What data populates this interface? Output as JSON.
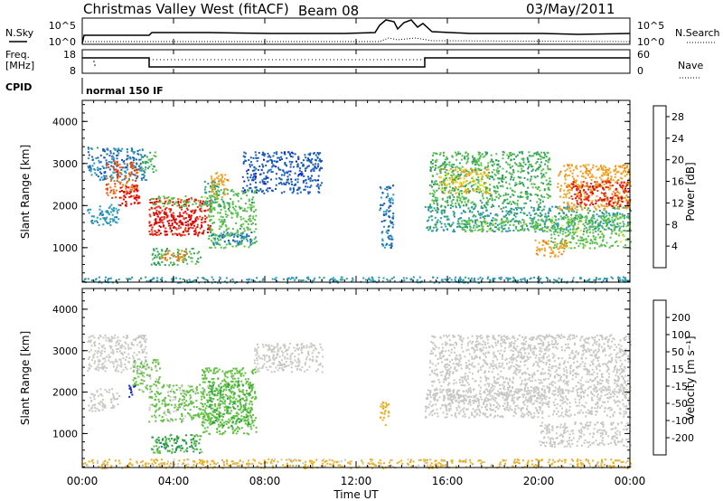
{
  "header": {
    "station": "Christmas Valley West (fitACF)",
    "beam": "Beam 08",
    "date": "03/May/2011"
  },
  "top_panels": {
    "nsky_label": "N.Sky",
    "nsky_ticks": [
      "10^5",
      "10^0"
    ],
    "nsearch_label": "N.Search",
    "nsearch_ticks": [
      "10^5",
      "10^0"
    ],
    "freq_label_line1": "Freq.",
    "freq_label_line2": "[MHz]",
    "freq_ticks": [
      "18",
      "8"
    ],
    "nave_label": "Nave",
    "nave_ticks": [
      "60",
      "0"
    ],
    "cpid_label": "CPID",
    "cpid_value": "normal 150 IF"
  },
  "chart_data": [
    {
      "type": "heatmap",
      "name": "power",
      "xlabel": "Time UT",
      "ylabel": "Slant Range [km]",
      "xlim": [
        0,
        24
      ],
      "ylim": [
        180,
        4500
      ],
      "yticks": [
        "1000",
        "2000",
        "3000",
        "4000"
      ],
      "colorbar": {
        "label": "Power [dB]",
        "ticks": [
          "4",
          "8",
          "12",
          "16",
          "20",
          "24",
          "28"
        ],
        "colors": [
          "#1010e0",
          "#1a5cb8",
          "#2a9ab8",
          "#2ea060",
          "#58c04a",
          "#e8e030",
          "#f0a020",
          "#f07010",
          "#e83010",
          "#e00000"
        ],
        "range": [
          0,
          30
        ]
      },
      "regions": [
        {
          "t0": 0.2,
          "t1": 1.6,
          "r0": 1550,
          "r1": 2050,
          "v": 7
        },
        {
          "t0": 0.2,
          "t1": 2.8,
          "r0": 2600,
          "r1": 3400,
          "v": 6
        },
        {
          "t0": 1.0,
          "t1": 2.4,
          "r0": 2200,
          "r1": 3100,
          "v": 24
        },
        {
          "t0": 1.6,
          "t1": 2.5,
          "r0": 2000,
          "r1": 2500,
          "v": 28
        },
        {
          "t0": 2.5,
          "t1": 3.2,
          "r0": 2800,
          "r1": 3300,
          "v": 12
        },
        {
          "t0": 2.9,
          "t1": 5.6,
          "r0": 1300,
          "r1": 2200,
          "v": 27
        },
        {
          "t0": 3.1,
          "t1": 5.0,
          "r0": 1500,
          "r1": 1800,
          "v": 29
        },
        {
          "t0": 3.0,
          "t1": 5.4,
          "r0": 2000,
          "r1": 2250,
          "v": 14
        },
        {
          "t0": 3.0,
          "t1": 5.2,
          "r0": 600,
          "r1": 1000,
          "v": 12
        },
        {
          "t0": 3.4,
          "t1": 4.6,
          "r0": 700,
          "r1": 950,
          "v": 22
        },
        {
          "t0": 5.3,
          "t1": 6.2,
          "r0": 2000,
          "r1": 2600,
          "v": 10
        },
        {
          "t0": 5.6,
          "t1": 6.4,
          "r0": 2200,
          "r1": 2800,
          "v": 20
        },
        {
          "t0": 5.5,
          "t1": 7.6,
          "r0": 1000,
          "r1": 2400,
          "v": 13
        },
        {
          "t0": 5.6,
          "t1": 7.4,
          "r0": 1100,
          "r1": 1400,
          "v": 6
        },
        {
          "t0": 7.0,
          "t1": 10.5,
          "r0": 2300,
          "r1": 3300,
          "v": 4
        },
        {
          "t0": 13.0,
          "t1": 13.6,
          "r0": 1000,
          "r1": 2500,
          "v": 6
        },
        {
          "t0": 15.2,
          "t1": 20.5,
          "r0": 2000,
          "r1": 3300,
          "v": 12
        },
        {
          "t0": 15.6,
          "t1": 17.8,
          "r0": 2300,
          "r1": 2900,
          "v": 18
        },
        {
          "t0": 15.0,
          "t1": 24.0,
          "r0": 1400,
          "r1": 2000,
          "v": 9
        },
        {
          "t0": 16.5,
          "t1": 20.5,
          "r0": 1400,
          "r1": 1700,
          "v": 14
        },
        {
          "t0": 20.5,
          "t1": 24.0,
          "r0": 1000,
          "r1": 1800,
          "v": 14
        },
        {
          "t0": 20.8,
          "t1": 24.0,
          "r0": 1900,
          "r1": 3000,
          "v": 20
        },
        {
          "t0": 21.4,
          "t1": 24.0,
          "r0": 2000,
          "r1": 2600,
          "v": 27
        },
        {
          "t0": 19.8,
          "t1": 21.2,
          "r0": 800,
          "r1": 1200,
          "v": 20
        },
        {
          "t0": 0.0,
          "t1": 24.0,
          "r0": 180,
          "r1": 320,
          "v": 8
        }
      ]
    },
    {
      "type": "heatmap",
      "name": "velocity",
      "xlabel": "Time UT",
      "ylabel": "Slant Range [km]",
      "xlim": [
        0,
        24
      ],
      "ylim": [
        180,
        4500
      ],
      "xticks": [
        "00:00",
        "04:00",
        "08:00",
        "12:00",
        "16:00",
        "20:00",
        "00:00"
      ],
      "yticks": [
        "1000",
        "2000",
        "3000",
        "4000"
      ],
      "colorbar": {
        "label": "Velocity [m s⁻¹]",
        "ticks": [
          "200",
          "100",
          "50",
          "15",
          "-15",
          "-50",
          "-100",
          "-200"
        ],
        "colors": [
          "#1a2ab8",
          "#2a6cc0",
          "#2a9a50",
          "#60c040",
          "#c8c8c4",
          "#e8b020",
          "#f08010",
          "#f05010",
          "#e00000"
        ],
        "range": [
          -250,
          250
        ]
      },
      "regions": [
        {
          "t0": 0.2,
          "t1": 2.8,
          "r0": 2500,
          "r1": 3400,
          "v": 0
        },
        {
          "t0": 0.2,
          "t1": 1.6,
          "r0": 1550,
          "r1": 2100,
          "v": 0
        },
        {
          "t0": 2.0,
          "t1": 2.3,
          "r0": 1900,
          "r1": 2300,
          "v": -220
        },
        {
          "t0": 2.2,
          "t1": 3.4,
          "r0": 2000,
          "r1": 2800,
          "v": -40
        },
        {
          "t0": 2.9,
          "t1": 5.6,
          "r0": 1300,
          "r1": 2200,
          "v": -40
        },
        {
          "t0": 5.2,
          "t1": 7.6,
          "r0": 1000,
          "r1": 2600,
          "v": -60
        },
        {
          "t0": 5.5,
          "t1": 7.4,
          "r0": 1200,
          "r1": 2300,
          "v": -80
        },
        {
          "t0": 3.0,
          "t1": 5.2,
          "r0": 550,
          "r1": 1000,
          "v": -80
        },
        {
          "t0": 3.2,
          "t1": 5.0,
          "r0": 650,
          "r1": 900,
          "v": -120
        },
        {
          "t0": 7.5,
          "t1": 10.5,
          "r0": 2500,
          "r1": 3200,
          "v": 0
        },
        {
          "t0": 13.0,
          "t1": 13.4,
          "r0": 1200,
          "r1": 1800,
          "v": 60
        },
        {
          "t0": 15.2,
          "t1": 20.5,
          "r0": 1800,
          "r1": 3400,
          "v": 0
        },
        {
          "t0": 15.0,
          "t1": 24.0,
          "r0": 1400,
          "r1": 2100,
          "v": 0
        },
        {
          "t0": 20.5,
          "t1": 24.0,
          "r0": 2000,
          "r1": 3400,
          "v": 0
        },
        {
          "t0": 20.0,
          "t1": 24.0,
          "r0": 700,
          "r1": 1300,
          "v": 0
        },
        {
          "t0": 0.0,
          "t1": 24.0,
          "r0": 180,
          "r1": 400,
          "v": 40
        }
      ]
    }
  ]
}
